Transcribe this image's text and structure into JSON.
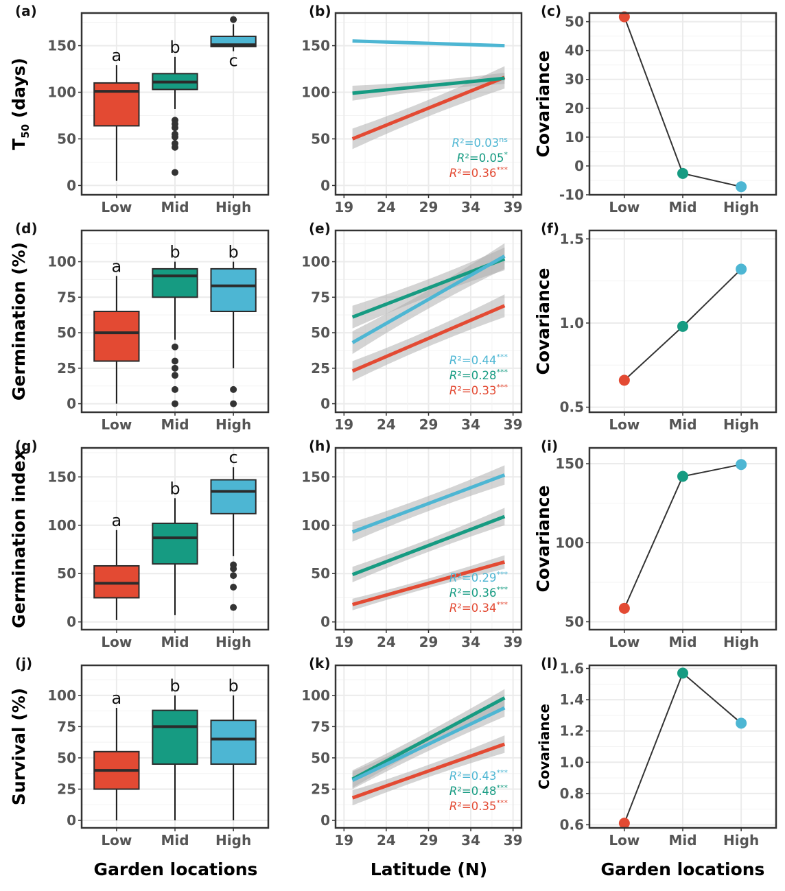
{
  "colors": {
    "Low": "#E34A33",
    "Mid": "#169B82",
    "High": "#4DB6D3",
    "box_line": "#2b2b2b",
    "band": "#a9a9a9",
    "grid": "#ebebeb"
  },
  "titles": {
    "col1_x": "Garden locations",
    "col2_x": "Latitude (N)",
    "col3_x": "Garden locations",
    "row_y": [
      "T50 (days)",
      "Germination (%)",
      "Germination index",
      "Survival (%)"
    ],
    "cov_y": "Covariance"
  },
  "chart_data": [
    {
      "panel": "(a)",
      "type": "box",
      "ylabel": "T50 (days)",
      "categories": [
        "Low",
        "Mid",
        "High"
      ],
      "ylim": [
        -10,
        185
      ],
      "yticks": [
        0,
        50,
        100,
        150
      ],
      "boxes": [
        {
          "cat": "Low",
          "lower": 5,
          "q1": 64,
          "median": 101,
          "q3": 110,
          "upper": 129,
          "outliers": [],
          "letter": "a"
        },
        {
          "cat": "Mid",
          "lower": 82,
          "q1": 103,
          "median": 111,
          "q3": 120,
          "upper": 138,
          "outliers": [
            70,
            66,
            62,
            55,
            52,
            45,
            41,
            14
          ],
          "letter": "b"
        },
        {
          "cat": "High",
          "lower": 144,
          "q1": 149,
          "median": 151,
          "q3": 160,
          "upper": 173,
          "outliers": [
            178
          ],
          "letter": "c"
        }
      ]
    },
    {
      "panel": "(b)",
      "type": "line",
      "xlabel": "Latitude (N)",
      "xlim": [
        18,
        40
      ],
      "xticks": [
        19,
        24,
        29,
        34,
        39
      ],
      "ylim": [
        -10,
        185
      ],
      "yticks": [
        0,
        50,
        100,
        150
      ],
      "series": [
        {
          "name": "High",
          "x": [
            20,
            38
          ],
          "y": [
            155,
            150
          ],
          "band": [
            0,
            0
          ],
          "r2": "R²=0.03",
          "sig": "ns"
        },
        {
          "name": "Mid",
          "x": [
            20,
            38
          ],
          "y": [
            99,
            115
          ],
          "band": [
            8,
            6
          ],
          "r2": "R²=0.05",
          "sig": "*"
        },
        {
          "name": "Low",
          "x": [
            20,
            38
          ],
          "y": [
            50,
            116
          ],
          "band": [
            11,
            12
          ],
          "r2": "R²=0.36",
          "sig": "***"
        }
      ]
    },
    {
      "panel": "(c)",
      "type": "line",
      "ylabel": "Covariance",
      "categories": [
        "Low",
        "Mid",
        "High"
      ],
      "ylim": [
        -10,
        53
      ],
      "yticks": [
        -10,
        0,
        10,
        20,
        30,
        40,
        50
      ],
      "values": [
        51.7,
        -2.6,
        -7.2
      ]
    },
    {
      "panel": "(d)",
      "type": "box",
      "ylabel": "Germination (%)",
      "categories": [
        "Low",
        "Mid",
        "High"
      ],
      "ylim": [
        -6,
        122
      ],
      "yticks": [
        0,
        25,
        50,
        75,
        100
      ],
      "boxes": [
        {
          "cat": "Low",
          "lower": 0,
          "q1": 30,
          "median": 50,
          "q3": 65,
          "upper": 90,
          "outliers": [],
          "letter": "a"
        },
        {
          "cat": "Mid",
          "lower": 45,
          "q1": 75,
          "median": 90,
          "q3": 95,
          "upper": 100,
          "outliers": [
            40,
            30,
            25,
            20,
            10,
            0
          ],
          "letter": "b"
        },
        {
          "cat": "High",
          "lower": 25,
          "q1": 65,
          "median": 83,
          "q3": 95,
          "upper": 100,
          "outliers": [
            10,
            0
          ],
          "letter": "b"
        }
      ]
    },
    {
      "panel": "(e)",
      "type": "line",
      "xlabel": "Latitude (N)",
      "xlim": [
        18,
        40
      ],
      "xticks": [
        19,
        24,
        29,
        34,
        39
      ],
      "ylim": [
        -6,
        122
      ],
      "yticks": [
        0,
        25,
        50,
        75,
        100
      ],
      "series": [
        {
          "name": "High",
          "x": [
            20,
            38
          ],
          "y": [
            43,
            104
          ],
          "band": [
            8,
            9
          ],
          "r2": "R²=0.44",
          "sig": "***"
        },
        {
          "name": "Mid",
          "x": [
            20,
            38
          ],
          "y": [
            61,
            102
          ],
          "band": [
            8,
            8
          ],
          "r2": "R²=0.28",
          "sig": "***"
        },
        {
          "name": "Low",
          "x": [
            20,
            38
          ],
          "y": [
            23,
            69
          ],
          "band": [
            7,
            8
          ],
          "r2": "R²=0.33",
          "sig": "***"
        }
      ]
    },
    {
      "panel": "(f)",
      "type": "line",
      "ylabel": "Covariance",
      "categories": [
        "Low",
        "Mid",
        "High"
      ],
      "ylim": [
        0.47,
        1.55
      ],
      "yticks": [
        0.5,
        1.0,
        1.5
      ],
      "ytick_labels": [
        "0.5",
        "1.0",
        "1.5"
      ],
      "values": [
        0.66,
        0.98,
        1.32
      ]
    },
    {
      "panel": "(g)",
      "type": "box",
      "ylabel": "Germination index",
      "categories": [
        "Low",
        "Mid",
        "High"
      ],
      "ylim": [
        -8,
        180
      ],
      "yticks": [
        0,
        50,
        100,
        150
      ],
      "boxes": [
        {
          "cat": "Low",
          "lower": 2,
          "q1": 25,
          "median": 40,
          "q3": 58,
          "upper": 95,
          "outliers": [],
          "letter": "a"
        },
        {
          "cat": "Mid",
          "lower": 7,
          "q1": 60,
          "median": 87,
          "q3": 102,
          "upper": 128,
          "outliers": [],
          "letter": "b"
        },
        {
          "cat": "High",
          "lower": 68,
          "q1": 112,
          "median": 135,
          "q3": 147,
          "upper": 160,
          "outliers": [
            59,
            55,
            48,
            36,
            15
          ],
          "letter": "c"
        }
      ]
    },
    {
      "panel": "(h)",
      "type": "line",
      "xlabel": "Latitude (N)",
      "xlim": [
        18,
        40
      ],
      "xticks": [
        19,
        24,
        29,
        34,
        39
      ],
      "ylim": [
        -8,
        180
      ],
      "yticks": [
        0,
        50,
        100,
        150
      ],
      "series": [
        {
          "name": "High",
          "x": [
            20,
            38
          ],
          "y": [
            93,
            152
          ],
          "band": [
            10,
            10
          ],
          "r2": "R²=0.29",
          "sig": "***"
        },
        {
          "name": "Mid",
          "x": [
            20,
            38
          ],
          "y": [
            49,
            109
          ],
          "band": [
            8,
            9
          ],
          "r2": "R²=0.36",
          "sig": "***"
        },
        {
          "name": "Low",
          "x": [
            20,
            38
          ],
          "y": [
            18,
            62
          ],
          "band": [
            6,
            7
          ],
          "r2": "R²=0.34",
          "sig": "***"
        }
      ]
    },
    {
      "panel": "(i)",
      "type": "line",
      "ylabel": "Covariance",
      "categories": [
        "Low",
        "Mid",
        "High"
      ],
      "ylim": [
        45,
        160
      ],
      "yticks": [
        50,
        100,
        150
      ],
      "values": [
        58.5,
        142,
        149.5
      ]
    },
    {
      "panel": "(j)",
      "type": "box",
      "ylabel": "Survival (%)",
      "categories": [
        "Low",
        "Mid",
        "High"
      ],
      "ylim": [
        -6,
        124
      ],
      "yticks": [
        0,
        25,
        50,
        75,
        100
      ],
      "boxes": [
        {
          "cat": "Low",
          "lower": 0,
          "q1": 25,
          "median": 40,
          "q3": 55,
          "upper": 90,
          "outliers": [],
          "letter": "a"
        },
        {
          "cat": "Mid",
          "lower": 0,
          "q1": 45,
          "median": 75,
          "q3": 88,
          "upper": 100,
          "outliers": [],
          "letter": "b"
        },
        {
          "cat": "High",
          "lower": 0,
          "q1": 45,
          "median": 65,
          "q3": 80,
          "upper": 100,
          "outliers": [],
          "letter": "b"
        }
      ]
    },
    {
      "panel": "(k)",
      "type": "line",
      "xlabel": "Latitude (N)",
      "xlim": [
        18,
        40
      ],
      "xticks": [
        19,
        24,
        29,
        34,
        39
      ],
      "ylim": [
        -6,
        124
      ],
      "yticks": [
        0,
        25,
        50,
        75,
        100
      ],
      "series": [
        {
          "name": "High",
          "x": [
            20,
            38
          ],
          "y": [
            32,
            90
          ],
          "band": [
            7,
            7
          ],
          "r2": "R²=0.43",
          "sig": "***"
        },
        {
          "name": "Mid",
          "x": [
            20,
            38
          ],
          "y": [
            33,
            98
          ],
          "band": [
            7,
            7
          ],
          "r2": "R²=0.48",
          "sig": "***"
        },
        {
          "name": "Low",
          "x": [
            20,
            38
          ],
          "y": [
            18,
            61
          ],
          "band": [
            6,
            7
          ],
          "r2": "R²=0.35",
          "sig": "***"
        }
      ]
    },
    {
      "panel": "(l)",
      "type": "line",
      "ylabel": "Covariance",
      "categories": [
        "Low",
        "Mid",
        "High"
      ],
      "ylim": [
        0.58,
        1.62
      ],
      "yticks": [
        0.6,
        0.8,
        1.0,
        1.2,
        1.4,
        1.6
      ],
      "ytick_labels": [
        "0.6",
        "0.8",
        "1.0",
        "1.2",
        "1.4",
        "1.6"
      ],
      "values": [
        0.61,
        1.57,
        1.25
      ]
    }
  ]
}
